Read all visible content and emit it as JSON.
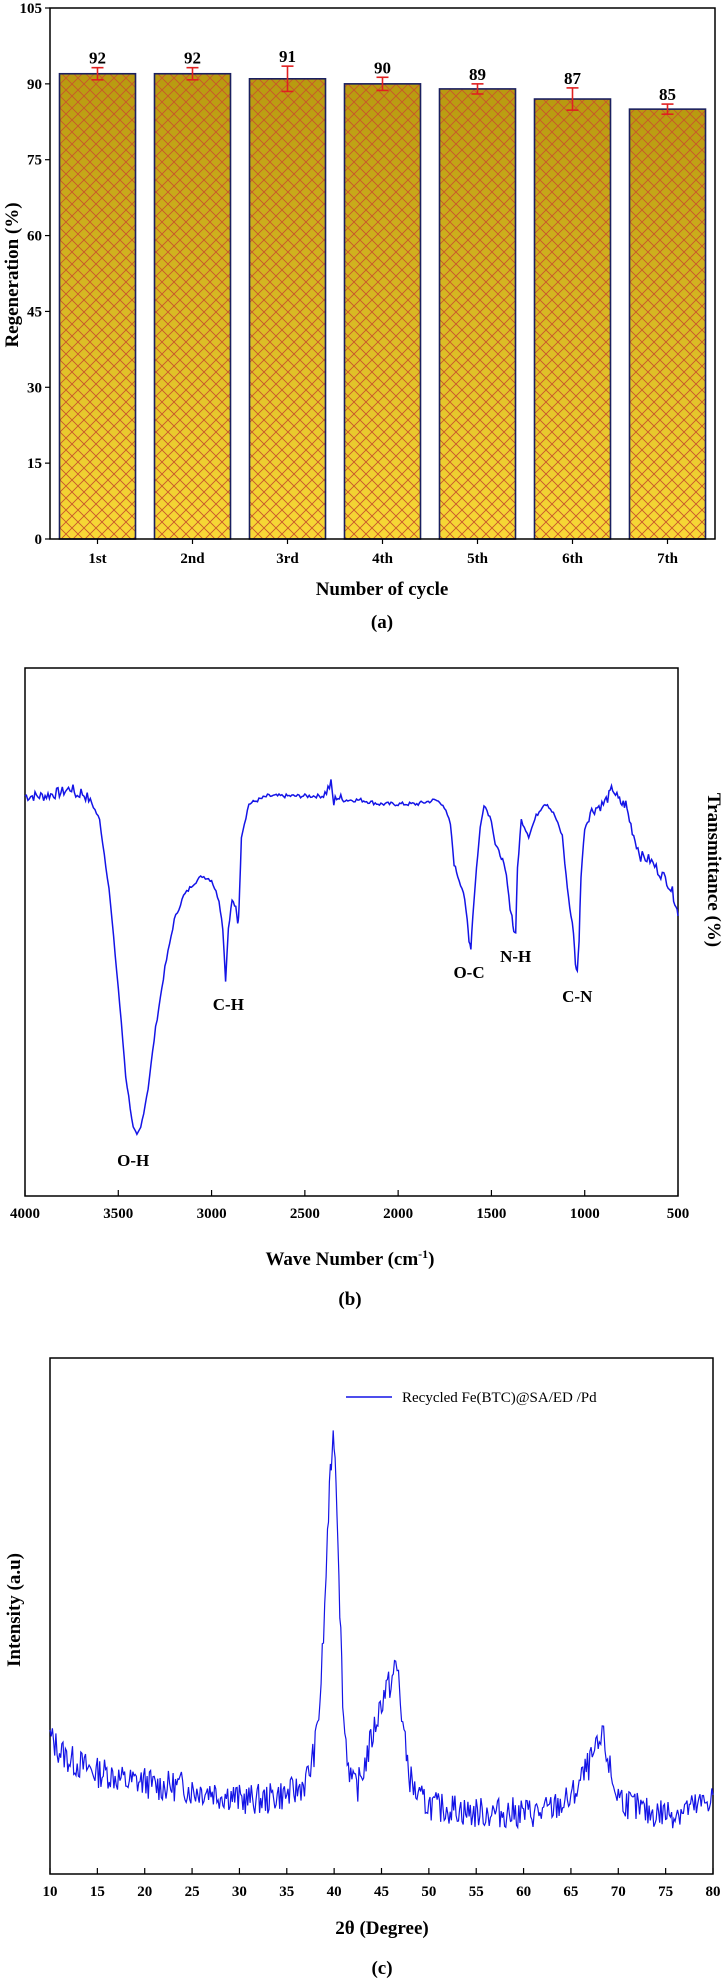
{
  "colors": {
    "bar_fill": "#F2D02A",
    "bar_hatch": "#C8552A",
    "bar_top": "#B89A10",
    "bar_outline": "#1A2060",
    "error_bar": "#E02020",
    "line": "#1414E6"
  },
  "chart_data": [
    {
      "type": "bar",
      "panel_label": "(a)",
      "categories": [
        "1st",
        "2nd",
        "3rd",
        "4th",
        "5th",
        "6th",
        "7th"
      ],
      "values": [
        92,
        92,
        91,
        90,
        89,
        87,
        85
      ],
      "value_labels": [
        "92",
        "92",
        "91",
        "90",
        "89",
        "87",
        "85"
      ],
      "errors": [
        1.2,
        1.2,
        2.5,
        1.3,
        1.0,
        2.2,
        1.0
      ],
      "xlabel": "Number of cycle",
      "ylabel": "Regeneration (%)",
      "ylim": [
        0,
        105
      ],
      "yticks": [
        0,
        15,
        30,
        45,
        60,
        75,
        90,
        105
      ],
      "ytick_labels": [
        "0",
        "15",
        "30",
        "45",
        "60",
        "75",
        "90",
        "105"
      ],
      "grid": false
    },
    {
      "type": "line",
      "panel_label": "(b)",
      "xlabel_main": "Wave Number (cm",
      "xlabel_sup": "-1",
      "xlabel_end": ")",
      "ylabel": "Transmittance (%)",
      "xlim": [
        4000,
        500
      ],
      "xticks": [
        4000,
        3500,
        3000,
        2500,
        2000,
        1500,
        1000,
        500
      ],
      "xtick_labels": [
        "4000",
        "3500",
        "3000",
        "2500",
        "2000",
        "1500",
        "1000",
        "500"
      ],
      "ylim": [
        0,
        100
      ],
      "y_tick_labels_shown": false,
      "x": [
        4000,
        3900,
        3800,
        3750,
        3720,
        3700,
        3650,
        3600,
        3550,
        3500,
        3460,
        3420,
        3400,
        3380,
        3340,
        3300,
        3250,
        3200,
        3150,
        3100,
        3050,
        3000,
        2960,
        2940,
        2925,
        2910,
        2890,
        2870,
        2860,
        2855,
        2850,
        2840,
        2800,
        2700,
        2600,
        2500,
        2400,
        2360,
        2345,
        2330,
        2300,
        2200,
        2100,
        2000,
        1900,
        1800,
        1760,
        1720,
        1700,
        1680,
        1650,
        1630,
        1620,
        1610,
        1600,
        1580,
        1560,
        1540,
        1500,
        1480,
        1460,
        1440,
        1420,
        1400,
        1390,
        1380,
        1370,
        1360,
        1340,
        1300,
        1260,
        1220,
        1200,
        1160,
        1120,
        1100,
        1080,
        1060,
        1050,
        1040,
        1030,
        1020,
        1000,
        970,
        940,
        900,
        870,
        850,
        820,
        800,
        780,
        760,
        730,
        700,
        650,
        600,
        560,
        530,
        510,
        500
      ],
      "y": [
        88,
        88,
        89,
        90,
        88,
        89,
        87,
        82,
        65,
        40,
        18,
        5,
        3,
        5,
        15,
        30,
        45,
        57,
        63,
        66,
        68,
        67,
        62,
        55,
        42,
        55,
        62,
        60,
        56,
        58,
        64,
        78,
        86,
        88,
        88,
        88,
        88,
        91,
        86,
        88,
        87,
        87,
        86,
        86,
        86,
        87,
        86,
        81,
        71,
        68,
        64,
        57,
        52,
        50,
        58,
        70,
        80,
        86,
        82,
        76,
        74,
        72,
        68,
        60,
        58,
        54,
        54,
        70,
        82,
        78,
        83,
        86,
        86,
        83,
        78,
        68,
        60,
        54,
        46,
        44,
        52,
        68,
        80,
        84,
        85,
        86,
        88,
        90,
        87,
        86,
        86,
        82,
        77,
        73,
        72,
        69,
        67,
        64,
        61,
        58
      ],
      "annotations": [
        {
          "label": "O-H",
          "x": 3420,
          "y": -3
        },
        {
          "label": "C-H",
          "x": 2910,
          "y": 36
        },
        {
          "label": "O-C",
          "x": 1620,
          "y": 44
        },
        {
          "label": "N-H",
          "x": 1370,
          "y": 48
        },
        {
          "label": "C-N",
          "x": 1040,
          "y": 38
        }
      ],
      "grid": false
    },
    {
      "type": "line",
      "panel_label": "(c)",
      "xlabel": "2θ (Degree)",
      "ylabel": "Intensity (a.u)",
      "xlim": [
        10,
        80
      ],
      "xticks": [
        10,
        15,
        20,
        25,
        30,
        35,
        40,
        45,
        50,
        55,
        60,
        65,
        70,
        75,
        80
      ],
      "xtick_labels": [
        "10",
        "15",
        "20",
        "25",
        "30",
        "35",
        "40",
        "45",
        "50",
        "55",
        "60",
        "65",
        "70",
        "75",
        "80"
      ],
      "ylim": [
        0,
        100
      ],
      "y_tick_labels_shown": false,
      "legend": "top-right",
      "series": [
        {
          "name": "Recycled Fe(BTC)@SA/ED /Pd",
          "x": [
            10,
            11,
            12,
            13,
            14,
            15,
            16,
            17,
            18,
            19,
            20,
            21,
            22,
            23,
            24,
            25,
            26,
            27,
            28,
            29,
            30,
            31,
            32,
            33,
            34,
            35,
            36,
            37,
            37.5,
            38,
            38.5,
            39,
            39.3,
            39.6,
            39.8,
            40,
            40.2,
            40.4,
            40.6,
            40.8,
            41,
            41.5,
            42,
            42.5,
            43,
            43.5,
            44,
            44.5,
            45,
            45.5,
            46,
            46.5,
            46.8,
            47,
            47.5,
            48,
            48.5,
            49,
            50,
            51,
            52,
            53,
            54,
            55,
            56,
            57,
            58,
            59,
            60,
            61,
            62,
            63,
            64,
            65,
            65.5,
            66,
            66.5,
            67,
            67.5,
            68,
            68.3,
            68.6,
            69,
            69.5,
            70,
            71,
            72,
            73,
            74,
            75,
            76,
            77,
            78,
            79,
            80
          ],
          "y": [
            22,
            19,
            17,
            16,
            15,
            14,
            14,
            13,
            12,
            12,
            12,
            11,
            11,
            11,
            11,
            10,
            10,
            10,
            9,
            9,
            8,
            8,
            8,
            8,
            9,
            9,
            10,
            12,
            15,
            20,
            30,
            50,
            68,
            80,
            88,
            90,
            80,
            68,
            52,
            38,
            26,
            16,
            11,
            11,
            14,
            18,
            22,
            26,
            30,
            33,
            34,
            38,
            36,
            30,
            20,
            13,
            10,
            8,
            7,
            6,
            6,
            6,
            5,
            5,
            5,
            5,
            5,
            5,
            5,
            5,
            5,
            6,
            7,
            8,
            10,
            12,
            14,
            16,
            18,
            20,
            22,
            20,
            16,
            11,
            9,
            7,
            6,
            5,
            5,
            5,
            5,
            6,
            6,
            7,
            9
          ]
        }
      ],
      "grid": false
    }
  ]
}
